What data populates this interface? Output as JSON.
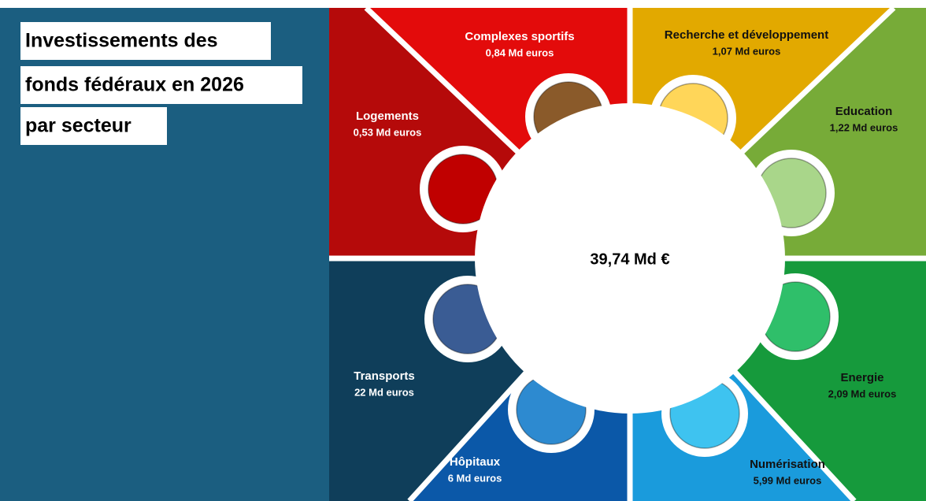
{
  "title_lines": [
    "Investissements des",
    "fonds fédéraux en 2026",
    "par secteur"
  ],
  "total": "39,74 Md €",
  "sectors": [
    {
      "name": "Logements",
      "amount": "0,53 Md euros",
      "color": "#b50a0a"
    },
    {
      "name": "Complexes sportifs",
      "amount": "0,84 Md euros",
      "color": "#e30b0b"
    },
    {
      "name": "Recherche et développement",
      "amount": "1,07 Md euros",
      "color": "#e2a900"
    },
    {
      "name": "Education",
      "amount": "1,22 Md euros",
      "color": "#77ab38"
    },
    {
      "name": "Energie",
      "amount": "2,09 Md euros",
      "color": "#169a3c"
    },
    {
      "name": "Numérisation",
      "amount": "5,99 Md euros",
      "color": "#1a9bdc"
    },
    {
      "name": "Hôpitaux",
      "amount": "6 Md euros",
      "color": "#0b58a8"
    },
    {
      "name": "Transports",
      "amount": "22 Md euros",
      "color": "#0f3e5a"
    }
  ]
}
